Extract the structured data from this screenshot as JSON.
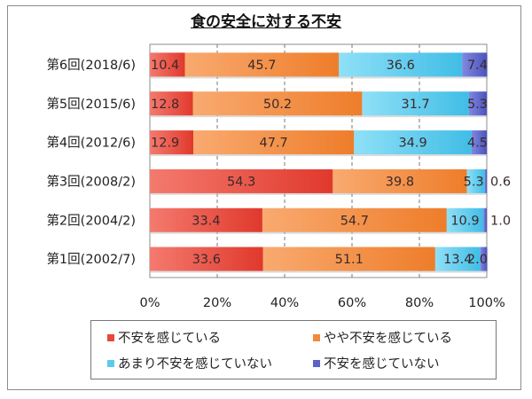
{
  "chart_data": {
    "type": "bar",
    "orientation": "horizontal",
    "stacked": "percent",
    "title": "食の安全に対する不安",
    "xlabel": "",
    "ylabel": "",
    "xlim": [
      0,
      100
    ],
    "grid": true,
    "legend_position": "bottom",
    "x_ticks": [
      "0%",
      "20%",
      "40%",
      "60%",
      "80%",
      "100%"
    ],
    "categories": [
      "第6回(2018/6)",
      "第5回(2015/6)",
      "第4回(2012/6)",
      "第3回(2008/2)",
      "第2回(2004/2)",
      "第1回(2002/7)"
    ],
    "series": [
      {
        "name": "不安を感じている",
        "color": "#e8473c",
        "values": [
          10.4,
          12.8,
          12.9,
          54.3,
          33.4,
          33.6
        ],
        "labels": [
          "10.4",
          "12.8",
          "12.9",
          "54.3",
          "33.4",
          "33.6"
        ]
      },
      {
        "name": "やや不安を感じている",
        "color": "#f08a3c",
        "values": [
          45.7,
          50.2,
          47.7,
          39.8,
          54.7,
          51.1
        ],
        "labels": [
          "45.7",
          "50.2",
          "47.7",
          "39.8",
          "54.7",
          "51.1"
        ]
      },
      {
        "name": "あまり不安を感じていない",
        "color": "#5ccbeb",
        "values": [
          36.6,
          31.7,
          34.9,
          5.3,
          10.9,
          13.4
        ],
        "labels": [
          "36.6",
          "31.7",
          "34.9",
          "5.3",
          "10.9",
          "13.4"
        ]
      },
      {
        "name": "不安を感じていない",
        "color": "#5b63c8",
        "values": [
          7.4,
          5.3,
          4.5,
          0.6,
          1.0,
          2.0
        ],
        "labels": [
          "7.4",
          "5.3",
          "4.5",
          "0.6",
          "1.0",
          "2.0"
        ]
      }
    ]
  }
}
